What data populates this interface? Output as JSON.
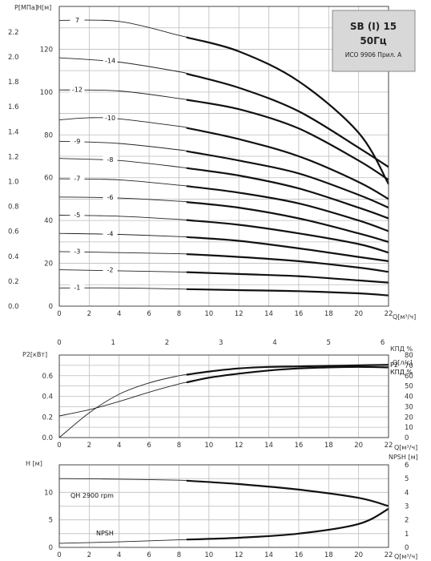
{
  "title_box": {
    "line1": "SB (I) 15",
    "line2": "50Гц",
    "line3": "ИСО 9906 Прил. А"
  },
  "chart_data": [
    {
      "type": "line",
      "id": "head",
      "xlabel": "Q[м³/ч]",
      "x2label": "Q[л/с]",
      "ylabel": "H[м]",
      "y2label": "P[МПа]",
      "xlim": [
        0,
        22
      ],
      "ylim": [
        0,
        140
      ],
      "x_ticks": [
        0,
        2,
        4,
        6,
        8,
        10,
        12,
        14,
        16,
        18,
        20,
        22
      ],
      "x_tick_labels": [
        "0",
        "2",
        "4",
        "6",
        "8",
        "10",
        "12",
        "14",
        "16",
        "18",
        "20",
        "22"
      ],
      "x2_ticks": [
        0,
        1,
        2,
        3,
        4,
        5,
        6
      ],
      "y_ticks": [
        0,
        20,
        40,
        60,
        80,
        100,
        120
      ],
      "y_tick_labels": [
        "0",
        "20",
        "40",
        "60",
        "80",
        "100",
        "120"
      ],
      "y2_ticks": [
        0,
        0.2,
        0.4,
        0.6,
        0.8,
        1.0,
        1.2,
        1.4,
        1.6,
        1.8,
        2.0,
        2.2
      ],
      "y2_tick_labels": [
        "0.0",
        "0.2",
        "0.4",
        "0.6",
        "0.8",
        "1.0",
        "1.2",
        "1.4",
        "1.6",
        "1.8",
        "2.0",
        "2.2"
      ],
      "operating_range_start_x": 8.5,
      "series": [
        {
          "name": "7",
          "label_x": 1.2,
          "values": [
            [
              0,
              133.5
            ],
            [
              4,
              133
            ],
            [
              8,
              126.5
            ],
            [
              12,
              119
            ],
            [
              16,
              105
            ],
            [
              20,
              81
            ],
            [
              22,
              57
            ]
          ]
        },
        {
          "name": "-14",
          "label_x": 3.4,
          "values": [
            [
              0,
              116
            ],
            [
              4,
              114
            ],
            [
              8,
              109.5
            ],
            [
              12,
              102
            ],
            [
              16,
              91
            ],
            [
              20,
              74
            ],
            [
              22,
              65
            ]
          ]
        },
        {
          "name": "-12",
          "label_x": 1.2,
          "values": [
            [
              0,
              101
            ],
            [
              4,
              100.5
            ],
            [
              8,
              97
            ],
            [
              12,
              92
            ],
            [
              16,
              83
            ],
            [
              20,
              68
            ],
            [
              22,
              59
            ]
          ]
        },
        {
          "name": "-10",
          "label_x": 3.4,
          "values": [
            [
              0,
              87
            ],
            [
              2,
              88
            ],
            [
              4,
              87.5
            ],
            [
              8,
              84
            ],
            [
              12,
              78
            ],
            [
              16,
              70
            ],
            [
              20,
              58
            ],
            [
              22,
              50
            ]
          ]
        },
        {
          "name": "-9",
          "label_x": 1.2,
          "values": [
            [
              0,
              77
            ],
            [
              4,
              76
            ],
            [
              8,
              73
            ],
            [
              12,
              68
            ],
            [
              16,
              62
            ],
            [
              20,
              52
            ],
            [
              22,
              46
            ]
          ]
        },
        {
          "name": "-8",
          "label_x": 3.4,
          "values": [
            [
              0,
              69
            ],
            [
              4,
              68
            ],
            [
              8,
              65
            ],
            [
              12,
              61
            ],
            [
              16,
              55
            ],
            [
              20,
              46
            ],
            [
              22,
              41
            ]
          ]
        },
        {
          "name": "-7",
          "label_x": 1.2,
          "values": [
            [
              0,
              59.5
            ],
            [
              4,
              59
            ],
            [
              8,
              56.5
            ],
            [
              12,
              53
            ],
            [
              16,
              48
            ],
            [
              20,
              40
            ],
            [
              22,
              35
            ]
          ]
        },
        {
          "name": "-6",
          "label_x": 3.4,
          "values": [
            [
              0,
              51
            ],
            [
              4,
              50.5
            ],
            [
              8,
              49
            ],
            [
              12,
              46
            ],
            [
              16,
              41
            ],
            [
              20,
              34
            ],
            [
              22,
              30
            ]
          ]
        },
        {
          "name": "-5",
          "label_x": 1.2,
          "values": [
            [
              0,
              42.5
            ],
            [
              4,
              42
            ],
            [
              8,
              40.5
            ],
            [
              12,
              38
            ],
            [
              16,
              34
            ],
            [
              20,
              29
            ],
            [
              22,
              25
            ]
          ]
        },
        {
          "name": "-4",
          "label_x": 3.4,
          "values": [
            [
              0,
              34
            ],
            [
              4,
              33.5
            ],
            [
              8,
              32.5
            ],
            [
              12,
              30.5
            ],
            [
              16,
              27
            ],
            [
              20,
              23
            ],
            [
              22,
              21
            ]
          ]
        },
        {
          "name": "-3",
          "label_x": 1.2,
          "values": [
            [
              0,
              25.5
            ],
            [
              4,
              25
            ],
            [
              8,
              24.5
            ],
            [
              12,
              23
            ],
            [
              16,
              21
            ],
            [
              20,
              18
            ],
            [
              22,
              16
            ]
          ]
        },
        {
          "name": "-2",
          "label_x": 3.4,
          "values": [
            [
              0,
              17
            ],
            [
              4,
              16.5
            ],
            [
              8,
              16
            ],
            [
              12,
              15
            ],
            [
              16,
              14
            ],
            [
              20,
              12
            ],
            [
              22,
              11
            ]
          ]
        },
        {
          "name": "-1",
          "label_x": 1.2,
          "values": [
            [
              0,
              8.5
            ],
            [
              4,
              8.5
            ],
            [
              8,
              8
            ],
            [
              12,
              7.5
            ],
            [
              16,
              7
            ],
            [
              20,
              6
            ],
            [
              22,
              5
            ]
          ]
        }
      ]
    },
    {
      "type": "line",
      "id": "power",
      "xlabel": "Q[м³/ч]",
      "ylabel": "P2[кВт]",
      "y2label": "КПД %",
      "xlim": [
        0,
        22
      ],
      "ylim": [
        0,
        0.8
      ],
      "y2lim": [
        0,
        80
      ],
      "x_ticks": [
        0,
        2,
        4,
        6,
        8,
        10,
        12,
        14,
        16,
        18,
        20,
        22
      ],
      "x_tick_labels": [
        "0",
        "2",
        "4",
        "6",
        "8",
        "10",
        "12",
        "14",
        "16",
        "18",
        "20",
        "22"
      ],
      "y_ticks": [
        0,
        0.2,
        0.4,
        0.6
      ],
      "y_tick_labels": [
        "0.0",
        "0.2",
        "0.4",
        "0.6"
      ],
      "y2_ticks": [
        0,
        10,
        20,
        30,
        40,
        50,
        60,
        70,
        80
      ],
      "y2_tick_labels": [
        "0",
        "10",
        "20",
        "30",
        "40",
        "50",
        "60",
        "70",
        "80"
      ],
      "series": [
        {
          "name": "P2",
          "axis": "left",
          "values": [
            [
              0,
              0.21
            ],
            [
              2,
              0.27
            ],
            [
              4,
              0.35
            ],
            [
              6,
              0.44
            ],
            [
              8,
              0.52
            ],
            [
              10,
              0.58
            ],
            [
              12,
              0.62
            ],
            [
              14,
              0.65
            ],
            [
              16,
              0.67
            ],
            [
              18,
              0.68
            ],
            [
              20,
              0.685
            ],
            [
              22,
              0.68
            ]
          ]
        },
        {
          "name": "КПД %",
          "axis": "right",
          "values": [
            [
              0,
              0
            ],
            [
              2,
              24
            ],
            [
              4,
              42
            ],
            [
              6,
              53
            ],
            [
              8,
              60
            ],
            [
              10,
              64
            ],
            [
              12,
              67
            ],
            [
              14,
              68.5
            ],
            [
              16,
              69
            ],
            [
              18,
              69.5
            ],
            [
              20,
              70
            ],
            [
              22,
              70.5
            ]
          ]
        }
      ]
    },
    {
      "type": "line",
      "id": "npsh",
      "xlabel": "Q[м³/ч]",
      "ylabel": "H [м]",
      "y2label": "NPSH [м]",
      "xlim": [
        0,
        22
      ],
      "ylim": [
        0,
        15
      ],
      "y2lim": [
        0,
        6
      ],
      "x_ticks": [
        0,
        2,
        4,
        6,
        8,
        10,
        12,
        14,
        16,
        18,
        20,
        22
      ],
      "x_tick_labels": [
        "0",
        "2",
        "4",
        "6",
        "8",
        "10",
        "12",
        "14",
        "16",
        "18",
        "20",
        "22"
      ],
      "y_ticks": [
        0,
        5,
        10
      ],
      "y_tick_labels": [
        "0",
        "5",
        "10"
      ],
      "y2_ticks": [
        0,
        1,
        2,
        3,
        4,
        5,
        6
      ],
      "y2_tick_labels": [
        "0",
        "1",
        "2",
        "3",
        "4",
        "5",
        "6"
      ],
      "series": [
        {
          "name": "QH 2900 rpm",
          "axis": "left",
          "values": [
            [
              0,
              12.5
            ],
            [
              4,
              12.4
            ],
            [
              8,
              12.2
            ],
            [
              12,
              11.5
            ],
            [
              16,
              10.5
            ],
            [
              20,
              9
            ],
            [
              22,
              7.5
            ]
          ]
        },
        {
          "name": "NPSH",
          "axis": "right",
          "values": [
            [
              0,
              0.3
            ],
            [
              4,
              0.4
            ],
            [
              8,
              0.55
            ],
            [
              12,
              0.7
            ],
            [
              16,
              1.0
            ],
            [
              20,
              1.7
            ],
            [
              22,
              2.8
            ]
          ]
        }
      ]
    }
  ]
}
